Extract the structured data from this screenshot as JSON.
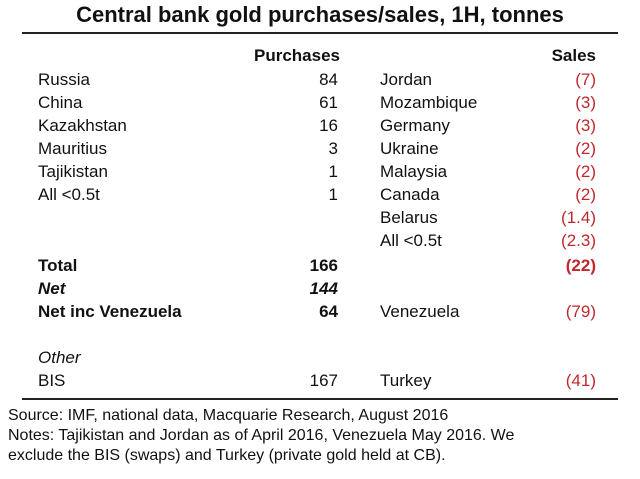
{
  "title": "Central bank gold purchases/sales, 1H, tonnes",
  "headers": {
    "purchases": "Purchases",
    "sales": "Sales"
  },
  "rows": [
    {
      "p_name": "Russia",
      "p_val": "84",
      "s_name": "Jordan",
      "s_val": "(7)"
    },
    {
      "p_name": "China",
      "p_val": "61",
      "s_name": "Mozambique",
      "s_val": "(3)"
    },
    {
      "p_name": "Kazakhstan",
      "p_val": "16",
      "s_name": "Germany",
      "s_val": "(3)"
    },
    {
      "p_name": "Mauritius",
      "p_val": "3",
      "s_name": "Ukraine",
      "s_val": "(2)"
    },
    {
      "p_name": "Tajikistan",
      "p_val": "1",
      "s_name": "Malaysia",
      "s_val": "(2)"
    },
    {
      "p_name": "All <0.5t",
      "p_val": "1",
      "s_name": "Canada",
      "s_val": "(2)"
    },
    {
      "p_name": "",
      "p_val": "",
      "s_name": "Belarus",
      "s_val": "(1.4)"
    },
    {
      "p_name": "",
      "p_val": "",
      "s_name": "All <0.5t",
      "s_val": "(2.3)"
    }
  ],
  "total": {
    "label": "Total",
    "purchases": "166",
    "sales": "(22)"
  },
  "net": {
    "label": "Net",
    "value": "144"
  },
  "net_inc": {
    "label": "Net inc Venezuela",
    "value": "64",
    "s_name": "Venezuela",
    "s_val": "(79)"
  },
  "other": {
    "label": "Other",
    "p_name": "BIS",
    "p_val": "167",
    "s_name": "Turkey",
    "s_val": "(41)"
  },
  "source": "Source: IMF, national data, Macquarie Research, August 2016",
  "notes_line1": "Notes: Tajikistan and Jordan as of April 2016, Venezuela May 2016. We",
  "notes_line2": "exclude the BIS (swaps) and Turkey (private gold held at CB)."
}
